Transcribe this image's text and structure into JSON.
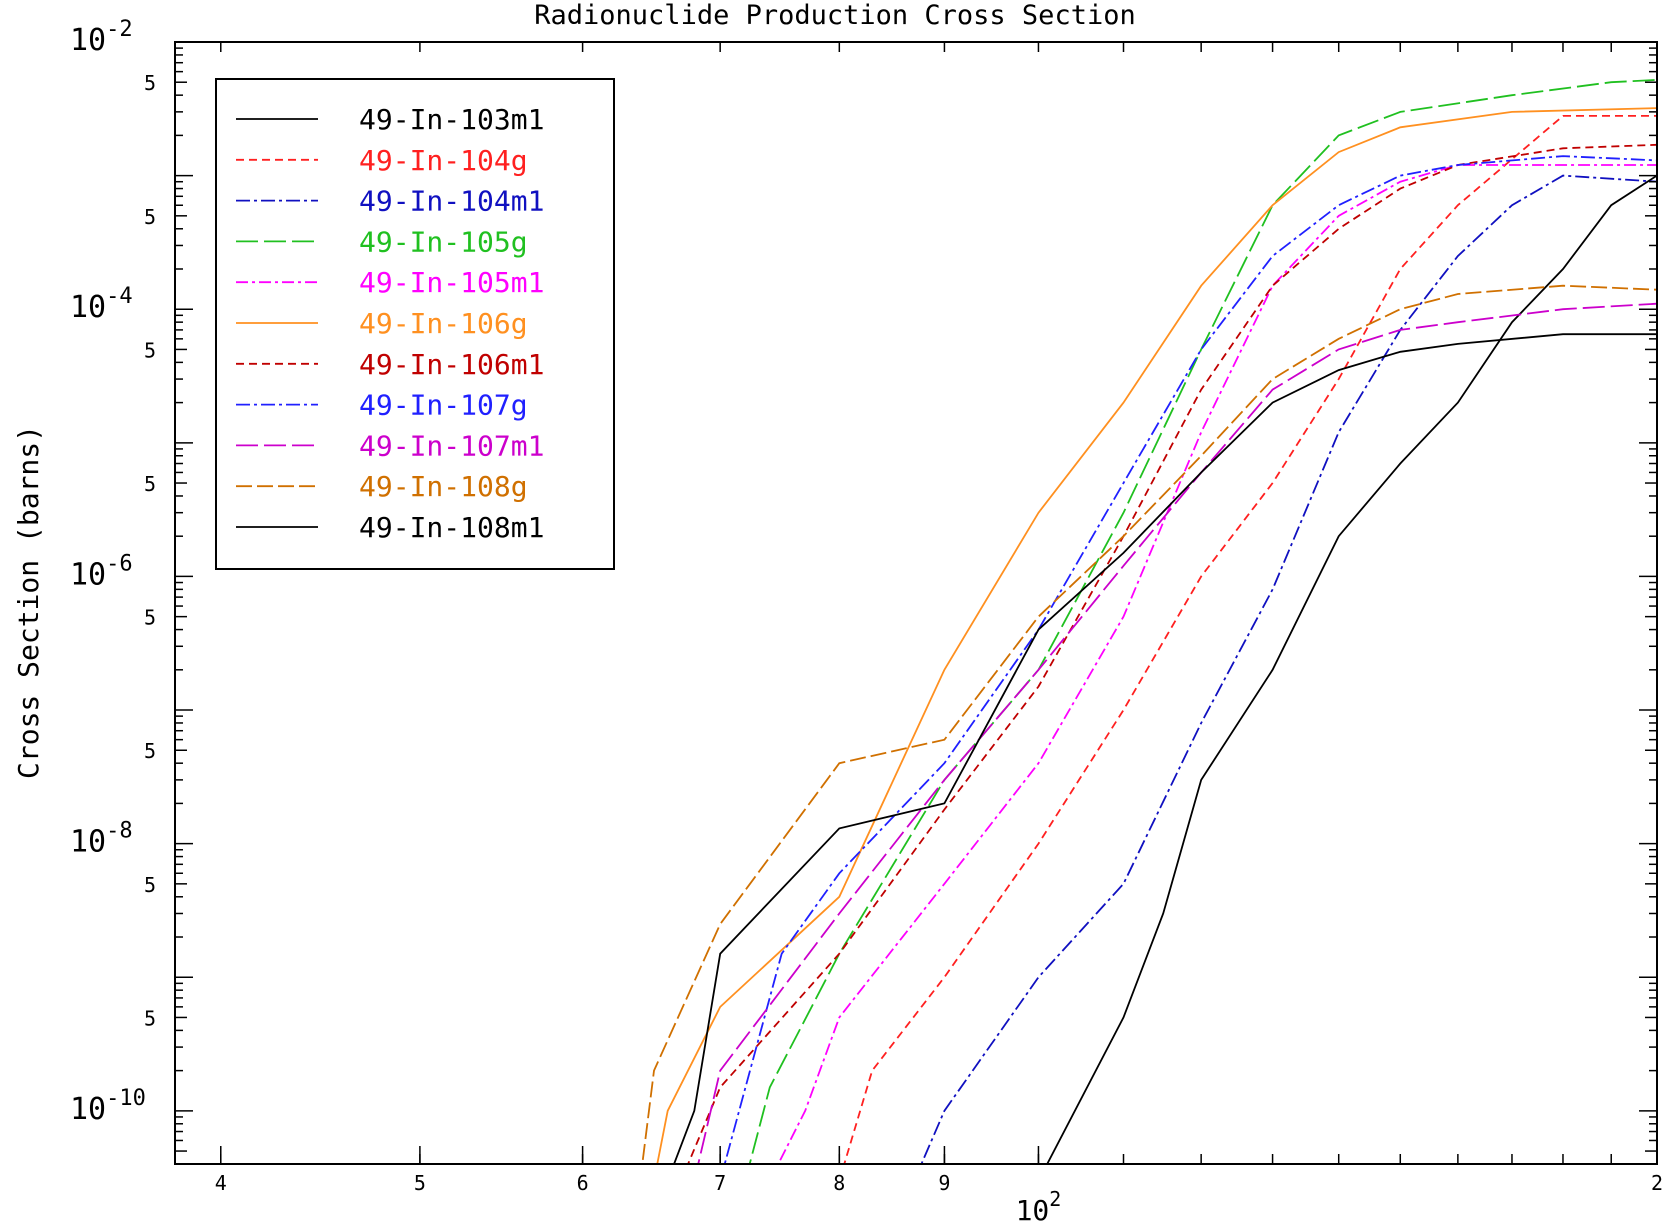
{
  "chart_data": {
    "type": "line",
    "title": "Radionuclide Production Cross Section",
    "ylabel": "Cross Section (barns)",
    "xlabel": "",
    "xscale": "log",
    "yscale": "log",
    "xlim": [
      38,
      200
    ],
    "ylim": [
      4e-11,
      0.01
    ],
    "grid": false,
    "legend_position": "top-left",
    "x_ticks": [
      {
        "value": 40,
        "label": "4"
      },
      {
        "value": 50,
        "label": "5"
      },
      {
        "value": 60,
        "label": "6"
      },
      {
        "value": 70,
        "label": "7"
      },
      {
        "value": 80,
        "label": "8"
      },
      {
        "value": 90,
        "label": "9"
      },
      {
        "value": 100,
        "label": "10",
        "exp": "2"
      },
      {
        "value": 200,
        "label": "2"
      }
    ],
    "y_ticks_major": [
      {
        "value": 0.01,
        "base": "10",
        "exp": "-2"
      },
      {
        "value": 0.0001,
        "base": "10",
        "exp": "-4"
      },
      {
        "value": 1e-06,
        "base": "10",
        "exp": "-6"
      },
      {
        "value": 1e-08,
        "base": "10",
        "exp": "-8"
      },
      {
        "value": 1e-10,
        "base": "10",
        "exp": "-10"
      }
    ],
    "y_ticks_minor": [
      {
        "value": 0.005,
        "label": "5"
      },
      {
        "value": 0.0005,
        "label": "5"
      },
      {
        "value": 5e-05,
        "label": "5"
      },
      {
        "value": 5e-06,
        "label": "5"
      },
      {
        "value": 5e-07,
        "label": "5"
      },
      {
        "value": 5e-08,
        "label": "5"
      },
      {
        "value": 5e-09,
        "label": "5"
      },
      {
        "value": 5e-10,
        "label": "5"
      }
    ],
    "series": [
      {
        "name": "49-In-103m1",
        "color": "#000000",
        "dash": "solid",
        "x": [
          100,
          110,
          115,
          120,
          130,
          140,
          150,
          160,
          170,
          180,
          190,
          200
        ],
        "y": [
          3e-11,
          5e-10,
          3e-09,
          3e-08,
          2e-07,
          2e-06,
          7e-06,
          2e-05,
          8e-05,
          0.0002,
          0.0006,
          0.001
        ]
      },
      {
        "name": "49-In-104g",
        "color": "#ff2020",
        "dash": "8,5",
        "x": [
          80,
          83,
          90,
          100,
          110,
          120,
          130,
          140,
          150,
          160,
          180,
          200
        ],
        "y": [
          3e-11,
          2e-10,
          1e-09,
          1e-08,
          1e-07,
          1e-06,
          5e-06,
          3e-05,
          0.0002,
          0.0006,
          0.0028,
          0.0028
        ]
      },
      {
        "name": "49-In-104m1",
        "color": "#1010c0",
        "dash": "14,4,3,4",
        "x": [
          87,
          90,
          100,
          110,
          120,
          130,
          140,
          150,
          160,
          170,
          180,
          200
        ],
        "y": [
          3e-11,
          1e-10,
          1e-09,
          5e-09,
          8e-08,
          8e-07,
          1.2e-05,
          7e-05,
          0.00025,
          0.0006,
          0.001,
          0.0009
        ]
      },
      {
        "name": "49-In-105g",
        "color": "#20c020",
        "dash": "22,6",
        "x": [
          72,
          74,
          80,
          90,
          100,
          110,
          120,
          130,
          140,
          150,
          170,
          190,
          200
        ],
        "y": [
          3e-11,
          1.5e-10,
          1.5e-09,
          3e-08,
          2e-07,
          3e-06,
          5e-05,
          0.0006,
          0.002,
          0.003,
          0.004,
          0.005,
          0.0052
        ]
      },
      {
        "name": "49-In-105m1",
        "color": "#ff00ff",
        "dash": "12,4,3,4",
        "x": [
          74,
          77,
          80,
          90,
          100,
          110,
          120,
          130,
          140,
          150,
          160,
          180,
          200
        ],
        "y": [
          3e-11,
          1e-10,
          5e-10,
          5e-09,
          4e-08,
          5e-07,
          1.2e-05,
          0.00015,
          0.0005,
          0.0009,
          0.0012,
          0.0012,
          0.0012
        ]
      },
      {
        "name": "49-In-106g",
        "color": "#ff9020",
        "dash": "solid",
        "x": [
          65,
          66,
          70,
          80,
          90,
          100,
          110,
          120,
          130,
          140,
          150,
          170,
          200
        ],
        "y": [
          3e-11,
          1e-10,
          6e-10,
          4e-09,
          2e-07,
          3e-06,
          2e-05,
          0.00015,
          0.0006,
          0.0015,
          0.0023,
          0.003,
          0.0032
        ]
      },
      {
        "name": "49-In-106m1",
        "color": "#c00000",
        "dash": "8,5",
        "x": [
          67,
          70,
          80,
          90,
          100,
          110,
          120,
          130,
          140,
          150,
          160,
          180,
          200
        ],
        "y": [
          3e-11,
          1.5e-10,
          1.5e-09,
          1.8e-08,
          1.5e-07,
          2e-06,
          2.5e-05,
          0.00015,
          0.0004,
          0.0008,
          0.0012,
          0.0016,
          0.0017
        ]
      },
      {
        "name": "49-In-107g",
        "color": "#2020ff",
        "dash": "14,4,3,4",
        "x": [
          70,
          75,
          80,
          90,
          100,
          110,
          120,
          130,
          140,
          150,
          160,
          180,
          200
        ],
        "y": [
          3e-11,
          1.5e-09,
          6e-09,
          4e-08,
          4e-07,
          5e-06,
          5e-05,
          0.00025,
          0.0006,
          0.001,
          0.0012,
          0.0014,
          0.0013
        ]
      },
      {
        "name": "49-In-107m1",
        "color": "#cc00cc",
        "dash": "22,6",
        "x": [
          68,
          70,
          80,
          90,
          100,
          110,
          120,
          130,
          140,
          150,
          160,
          180,
          200
        ],
        "y": [
          3e-11,
          2e-10,
          3e-09,
          3e-08,
          2e-07,
          1.2e-06,
          6e-06,
          2.5e-05,
          5e-05,
          7e-05,
          8e-05,
          0.0001,
          0.00011
        ]
      },
      {
        "name": "49-In-108g",
        "color": "#d07000",
        "dash": "16,5",
        "x": [
          64,
          65,
          70,
          80,
          90,
          100,
          110,
          120,
          130,
          140,
          150,
          160,
          180,
          200
        ],
        "y": [
          3e-11,
          2e-10,
          2.5e-09,
          4e-08,
          6e-08,
          5e-07,
          2e-06,
          8e-06,
          3e-05,
          6e-05,
          0.0001,
          0.00013,
          0.00015,
          0.00014
        ]
      },
      {
        "name": "49-In-108m1",
        "color": "#000000",
        "dash": "solid",
        "x": [
          66,
          68,
          70,
          80,
          90,
          100,
          110,
          120,
          130,
          140,
          150,
          160,
          180,
          200
        ],
        "y": [
          3e-11,
          1e-10,
          1.5e-09,
          1.3e-08,
          2e-08,
          4e-07,
          1.5e-06,
          6e-06,
          2e-05,
          3.5e-05,
          4.8e-05,
          5.5e-05,
          6.5e-05,
          6.5e-05
        ]
      }
    ]
  }
}
